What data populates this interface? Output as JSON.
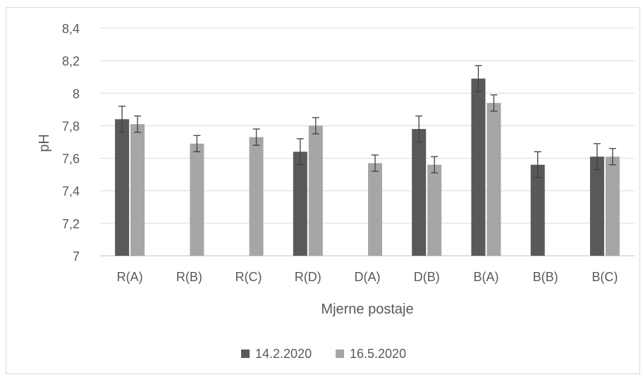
{
  "chart_data": {
    "type": "bar",
    "title": "",
    "xlabel": "Mjerne postaje",
    "ylabel": "pH",
    "categories": [
      "R(A)",
      "R(B)",
      "R(C)",
      "R(D)",
      "D(A)",
      "D(B)",
      "B(A)",
      "B(B)",
      "B(C)"
    ],
    "series": [
      {
        "name": "14.2.2020",
        "color": "#595959",
        "values": [
          7.84,
          null,
          null,
          7.64,
          null,
          7.78,
          8.09,
          7.56,
          7.61
        ],
        "error": [
          0.08,
          null,
          null,
          0.08,
          null,
          0.08,
          0.08,
          0.08,
          0.08
        ]
      },
      {
        "name": "16.5.2020",
        "color": "#a6a6a6",
        "values": [
          7.81,
          7.69,
          7.73,
          7.8,
          7.57,
          7.56,
          7.94,
          null,
          7.61
        ],
        "error": [
          0.05,
          0.05,
          0.05,
          0.05,
          0.05,
          0.05,
          0.05,
          null,
          0.05
        ]
      }
    ],
    "ylim": [
      7,
      8.4
    ],
    "yticks": [
      "7",
      "7,2",
      "7,4",
      "7,6",
      "7,8",
      "8",
      "8,2",
      "8,4"
    ],
    "ytick_values": [
      7,
      7.2,
      7.4,
      7.6,
      7.8,
      8,
      8.2,
      8.4
    ],
    "grid": true,
    "legend_position": "bottom"
  }
}
